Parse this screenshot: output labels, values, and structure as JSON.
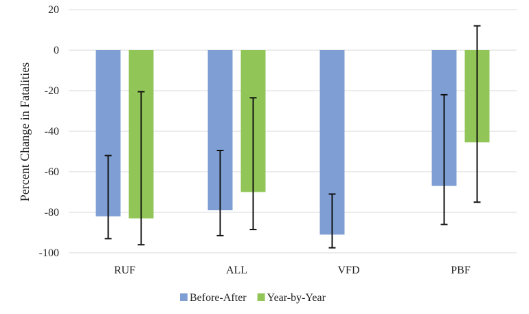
{
  "chart_data": {
    "type": "bar",
    "ylabel": "Percent Change in Fatalities",
    "ylim": [
      -100,
      20
    ],
    "yticks": [
      20,
      0,
      -20,
      -40,
      -60,
      -80,
      -100
    ],
    "grid": true,
    "legend_position": "bottom",
    "categories": [
      "RUF",
      "ALL",
      "VFD",
      "PBF"
    ],
    "series": [
      {
        "name": "Before-After",
        "color": "#7f9fd4",
        "values": [
          -82,
          -79,
          -91,
          -67
        ],
        "error_low": [
          -93,
          -91.5,
          -97.5,
          -86
        ],
        "error_high": [
          -52,
          -49.5,
          -71,
          -22
        ]
      },
      {
        "name": "Year-by-Year",
        "color": "#92c558",
        "values": [
          -83,
          -70,
          null,
          -45.5
        ],
        "error_low": [
          -96,
          -88.5,
          null,
          -75
        ],
        "error_high": [
          -20.5,
          -23.5,
          null,
          12
        ]
      }
    ]
  }
}
